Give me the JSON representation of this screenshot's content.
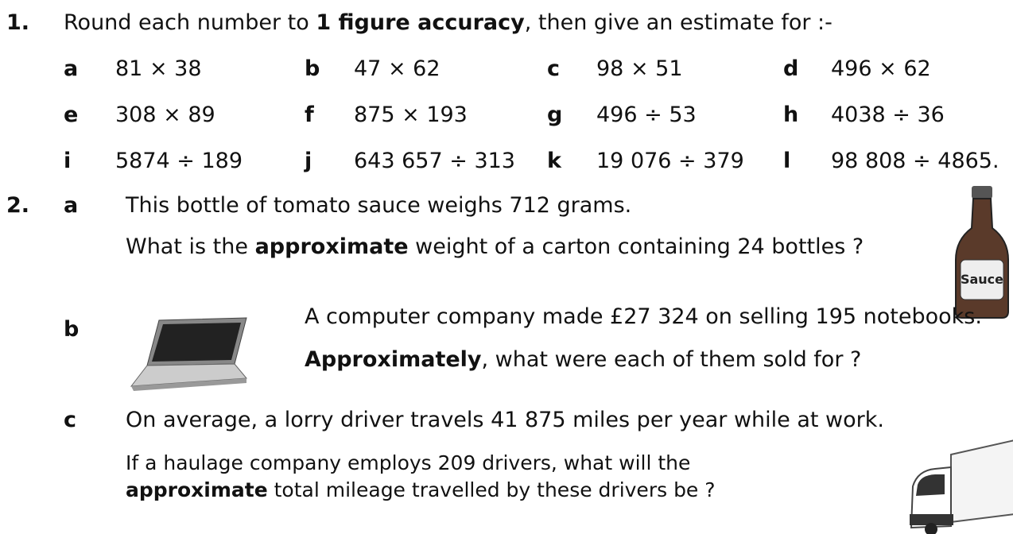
{
  "q1": {
    "number": "1.",
    "intro": [
      "Round each number to ",
      "1 figure accuracy",
      ", then give an estimate for :-"
    ],
    "items": [
      [
        "a",
        "81 × 38"
      ],
      [
        "b",
        "47 × 62"
      ],
      [
        "c",
        "98 × 51"
      ],
      [
        "d",
        "496 × 62"
      ],
      [
        "e",
        "308 × 89"
      ],
      [
        "f",
        "875 × 193"
      ],
      [
        "g",
        "496 ÷ 53"
      ],
      [
        "h",
        "4038 ÷ 36"
      ],
      [
        "i",
        "5874 ÷ 189"
      ],
      [
        "j",
        "643 657 ÷ 313"
      ],
      [
        "k",
        "19 076 ÷ 379"
      ],
      [
        "l",
        "98 808 ÷ 4865."
      ]
    ]
  },
  "q2": {
    "number": "2.",
    "a": {
      "label": "a",
      "line1": "This bottle of tomato sauce weighs 712 grams.",
      "line2": [
        "What is the ",
        "approximate",
        " weight of a carton containing 24 bottles ?"
      ],
      "image_text": "Sauce"
    },
    "b": {
      "label": "b",
      "line1": "A computer company made £27 324 on selling 195 notebooks.",
      "line2": [
        "Approximately",
        ", what were each of them sold for ?"
      ]
    },
    "c": {
      "label": "c",
      "line1": "On average, a lorry driver travels 41 875 miles per year while at work.",
      "line2": "If a haulage company employs 209 drivers, what will the",
      "line3": [
        "approximate",
        " total mileage travelled by these drivers be  ?"
      ]
    }
  }
}
